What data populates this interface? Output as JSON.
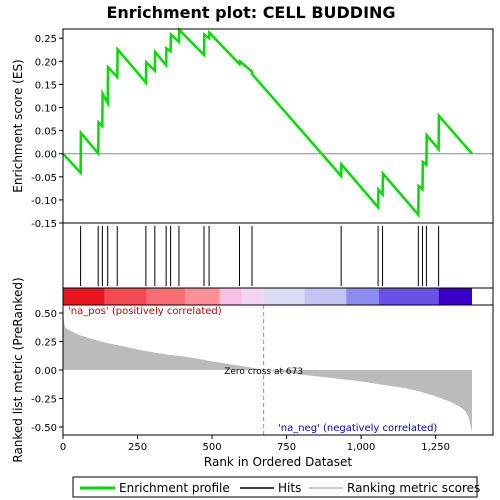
{
  "chart_data": {
    "type": "line",
    "title": "Enrichment plot: CELL BUDDING",
    "top_panel": {
      "ylabel": "Enrichment score (ES)",
      "ylim": [
        -0.15,
        0.27
      ],
      "yticks": [
        -0.15,
        -0.1,
        -0.05,
        0.0,
        0.05,
        0.1,
        0.15,
        0.2,
        0.25
      ],
      "ytick_labels": [
        "-0.15",
        "-0.10",
        "-0.05",
        "0.00",
        "0.05",
        "0.10",
        "0.15",
        "0.20",
        "0.25"
      ],
      "series": [
        {
          "name": "Enrichment profile",
          "color": "#00dd00",
          "points": [
            [
              0,
              0.0
            ],
            [
              59,
              -0.041
            ],
            [
              60,
              0.045
            ],
            [
              118,
              0.001
            ],
            [
              119,
              0.068
            ],
            [
              132,
              0.06
            ],
            [
              133,
              0.13
            ],
            [
              150,
              0.11
            ],
            [
              151,
              0.187
            ],
            [
              182,
              0.166
            ],
            [
              183,
              0.226
            ],
            [
              278,
              0.154
            ],
            [
              279,
              0.198
            ],
            [
              308,
              0.18
            ],
            [
              309,
              0.22
            ],
            [
              346,
              0.192
            ],
            [
              347,
              0.228
            ],
            [
              361,
              0.222
            ],
            [
              362,
              0.258
            ],
            [
              389,
              0.242
            ],
            [
              390,
              0.268
            ],
            [
              473,
              0.214
            ],
            [
              474,
              0.258
            ],
            [
              490,
              0.25
            ],
            [
              491,
              0.262
            ],
            [
              592,
              0.194
            ],
            [
              593,
              0.2
            ],
            [
              634,
              0.178
            ],
            [
              635,
              0.172
            ],
            [
              933,
              -0.048
            ],
            [
              934,
              -0.023
            ],
            [
              1057,
              -0.116
            ],
            [
              1058,
              -0.078
            ],
            [
              1072,
              -0.088
            ],
            [
              1073,
              -0.043
            ],
            [
              1192,
              -0.132
            ],
            [
              1193,
              -0.07
            ],
            [
              1206,
              -0.077
            ],
            [
              1207,
              -0.018
            ],
            [
              1219,
              -0.024
            ],
            [
              1220,
              0.04
            ],
            [
              1260,
              0.01
            ],
            [
              1261,
              0.082
            ],
            [
              1372,
              0.0
            ]
          ]
        }
      ],
      "hits": [
        59,
        118,
        132,
        150,
        182,
        278,
        308,
        346,
        361,
        389,
        473,
        490,
        592,
        634,
        933,
        1057,
        1072,
        1192,
        1206,
        1219,
        1260
      ]
    },
    "bottom_panel": {
      "ylabel": "Ranked list metric (PreRanked)",
      "xlabel": "Rank in Ordered Dataset",
      "ylim": [
        -0.57,
        0.57
      ],
      "yticks": [
        -0.5,
        -0.25,
        0.0,
        0.25,
        0.5
      ],
      "ytick_labels": [
        "-0.50",
        "-0.25",
        "0.00",
        "0.25",
        "0.50"
      ],
      "metric_points": [
        [
          0,
          0.55
        ],
        [
          3,
          0.42
        ],
        [
          8,
          0.37
        ],
        [
          20,
          0.35
        ],
        [
          50,
          0.31
        ],
        [
          100,
          0.27
        ],
        [
          150,
          0.235
        ],
        [
          200,
          0.21
        ],
        [
          250,
          0.18
        ],
        [
          300,
          0.155
        ],
        [
          350,
          0.135
        ],
        [
          400,
          0.12
        ],
        [
          450,
          0.1
        ],
        [
          500,
          0.075
        ],
        [
          550,
          0.055
        ],
        [
          600,
          0.035
        ],
        [
          650,
          0.012
        ],
        [
          673,
          0.0
        ],
        [
          700,
          -0.01
        ],
        [
          800,
          -0.04
        ],
        [
          900,
          -0.07
        ],
        [
          1000,
          -0.1
        ],
        [
          1100,
          -0.14
        ],
        [
          1150,
          -0.16
        ],
        [
          1200,
          -0.19
        ],
        [
          1250,
          -0.23
        ],
        [
          1300,
          -0.28
        ],
        [
          1330,
          -0.32
        ],
        [
          1350,
          -0.36
        ],
        [
          1362,
          -0.42
        ],
        [
          1368,
          -0.5
        ],
        [
          1372,
          -0.55
        ]
      ],
      "zero_cross_rank": 673,
      "zero_cross_label": "Zero cross at 673",
      "pos_label": "'na_pos' (positively correlated)",
      "neg_label": "'na_neg' (negatively correlated)",
      "pos_label_color": "#cc0000",
      "neg_label_color": "#0000cc"
    },
    "xlim": [
      0,
      1372
    ],
    "xticks": [
      0,
      250,
      500,
      750,
      1000,
      1250
    ],
    "xtick_labels": [
      "0",
      "250",
      "500",
      "750",
      "1,000",
      "1,250"
    ],
    "color_bar": [
      {
        "from": 0,
        "to": 140,
        "color": "#e8141e"
      },
      {
        "from": 140,
        "to": 280,
        "color": "#f24a50"
      },
      {
        "from": 280,
        "to": 410,
        "color": "#f86c74"
      },
      {
        "from": 410,
        "to": 525,
        "color": "#fc9096"
      },
      {
        "from": 525,
        "to": 600,
        "color": "#f8c0e4"
      },
      {
        "from": 600,
        "to": 673,
        "color": "#f4d4f0"
      },
      {
        "from": 673,
        "to": 810,
        "color": "#dcdcf4"
      },
      {
        "from": 810,
        "to": 950,
        "color": "#c4c4f4"
      },
      {
        "from": 950,
        "to": 1060,
        "color": "#8c8cf0"
      },
      {
        "from": 1060,
        "to": 1260,
        "color": "#6a50e6"
      },
      {
        "from": 1260,
        "to": 1372,
        "color": "#3800c8"
      }
    ],
    "legend": {
      "placement": "bottom",
      "items": [
        {
          "label": "Enrichment profile",
          "color": "#00dd00"
        },
        {
          "label": "Hits",
          "color": "#000000"
        },
        {
          "label": "Ranking metric scores",
          "color": "#bbbbbb"
        }
      ]
    }
  }
}
